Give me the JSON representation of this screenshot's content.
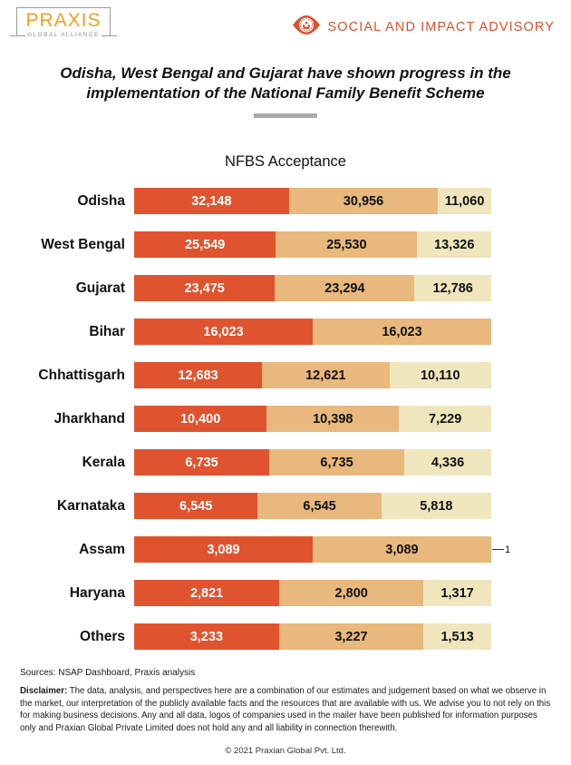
{
  "header": {
    "logo": {
      "name": "PRAXIS",
      "subtitle": "GLOBAL ALLIANCE"
    },
    "division": "SOCIAL AND IMPACT ADVISORY",
    "accent_color": "#d9512c",
    "logo_color": "#f2a01e"
  },
  "title": "Odisha, West Bengal and Gujarat have shown progress in the implementation of the National Family Benefit Scheme",
  "chart_data": {
    "type": "bar",
    "variant": "horizontal-stacked-100pct",
    "title": "NFBS Acceptance",
    "grid": false,
    "legend": "none",
    "categories": [
      "Odisha",
      "West Bengal",
      "Gujarat",
      "Bihar",
      "Chhattisgarh",
      "Jharkhand",
      "Kerala",
      "Karnataka",
      "Assam",
      "Haryana",
      "Others"
    ],
    "series": [
      {
        "name": "segment-1",
        "color": "#e0532f",
        "text_color": "#ffffff",
        "values": [
          32148,
          25549,
          23475,
          16023,
          12683,
          10400,
          6735,
          6545,
          3089,
          2821,
          3233
        ]
      },
      {
        "name": "segment-2",
        "color": "#e9b87d",
        "text_color": "#111111",
        "values": [
          30956,
          25530,
          23294,
          16023,
          12621,
          10398,
          6735,
          6545,
          3089,
          2800,
          3227
        ]
      },
      {
        "name": "segment-3",
        "color": "#efe6be",
        "text_color": "#111111",
        "values": [
          11060,
          13326,
          12786,
          null,
          10110,
          7229,
          4336,
          5818,
          1,
          1317,
          1513
        ]
      }
    ],
    "callout_note": "Assam third segment value 1 shown as outside callout —1"
  },
  "footer": {
    "sources": "Sources: NSAP Dashboard, Praxis analysis",
    "disclaimer_label": "Disclaimer:",
    "disclaimer_text": " The data, analysis, and perspectives here are a combination of our estimates and judgement based on what we observe in the market, our interpretation of the publicly available facts and the resources that are available with us. We advise you to not rely on this for making business decisions. Any and all data, logos of companies used in the mailer have been published for information purposes only and Praxian Global Private Limited does not hold any and all liability in connection therewith.",
    "copyright": "© 2021 Praxian Global Pvt. Ltd."
  }
}
